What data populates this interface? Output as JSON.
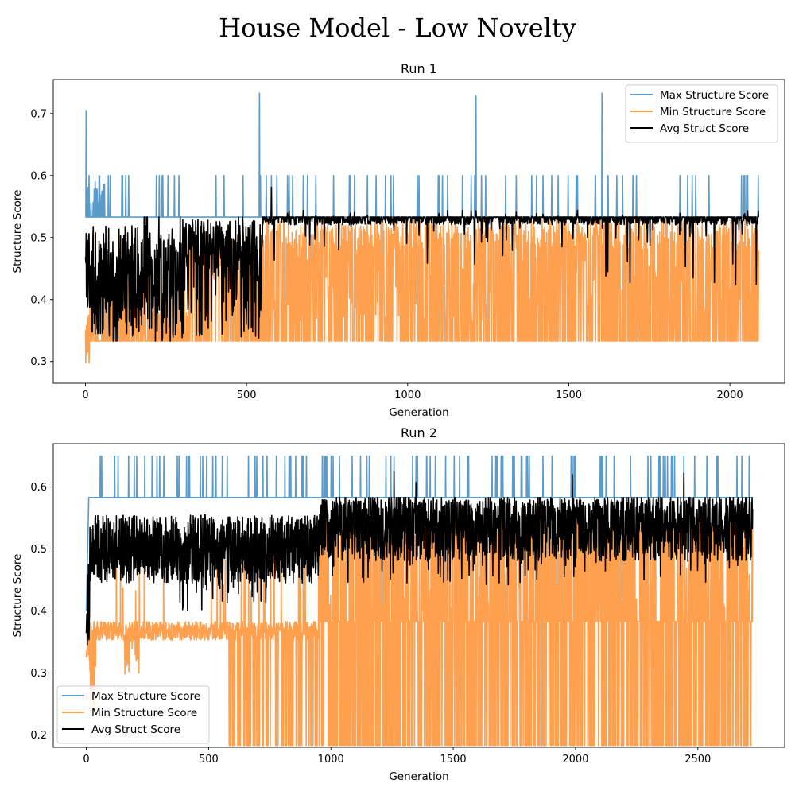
{
  "title": "House Model - Low Novelty",
  "colors": {
    "max": "#5b9bc9",
    "min": "#ffa04f",
    "avg": "#000000"
  },
  "chart_data": [
    {
      "type": "line",
      "title": "Run 1",
      "xlabel": "Generation",
      "ylabel": "Structure Score",
      "xlim": [
        -100,
        2170
      ],
      "ylim": [
        0.265,
        0.755
      ],
      "xticks": [
        0,
        500,
        1000,
        1500,
        2000
      ],
      "yticks": [
        0.3,
        0.4,
        0.5,
        0.6,
        0.7
      ],
      "n_generations": 2090,
      "legend_position": "upper right",
      "max_baseline": 0.533,
      "avg_plateau": 0.533,
      "min_floor": 0.333,
      "min_ceiling": 0.525,
      "transition_generation": 550,
      "min_start": 0.29,
      "max_spikes": [
        [
          2,
          0.705
        ],
        [
          540,
          0.733
        ],
        [
          1212,
          0.728
        ],
        [
          1603,
          0.733
        ]
      ],
      "series": [
        {
          "name": "Max Structure Score",
          "color": "#5b9bc9"
        },
        {
          "name": "Min Structure Score",
          "color": "#ffa04f"
        },
        {
          "name": "Avg Struct Score",
          "color": "#000000"
        }
      ]
    },
    {
      "type": "line",
      "title": "Run 2",
      "xlabel": "Generation",
      "ylabel": "Structure Score",
      "xlim": [
        -135,
        2855
      ],
      "ylim": [
        0.18,
        0.67
      ],
      "xticks": [
        0,
        500,
        1000,
        1500,
        2000,
        2500
      ],
      "yticks": [
        0.2,
        0.3,
        0.4,
        0.5,
        0.6
      ],
      "n_generations": 2725,
      "legend_position": "lower left",
      "max_baseline": 0.583,
      "max_spike_level": 0.65,
      "avg_center": 0.53,
      "min_floor": 0.183,
      "min_baseline": 0.383,
      "transition_generation": 950,
      "min_start": 0.31,
      "series": [
        {
          "name": "Max Structure Score",
          "color": "#5b9bc9"
        },
        {
          "name": "Min Structure Score",
          "color": "#ffa04f"
        },
        {
          "name": "Avg Struct Score",
          "color": "#000000"
        }
      ]
    }
  ]
}
